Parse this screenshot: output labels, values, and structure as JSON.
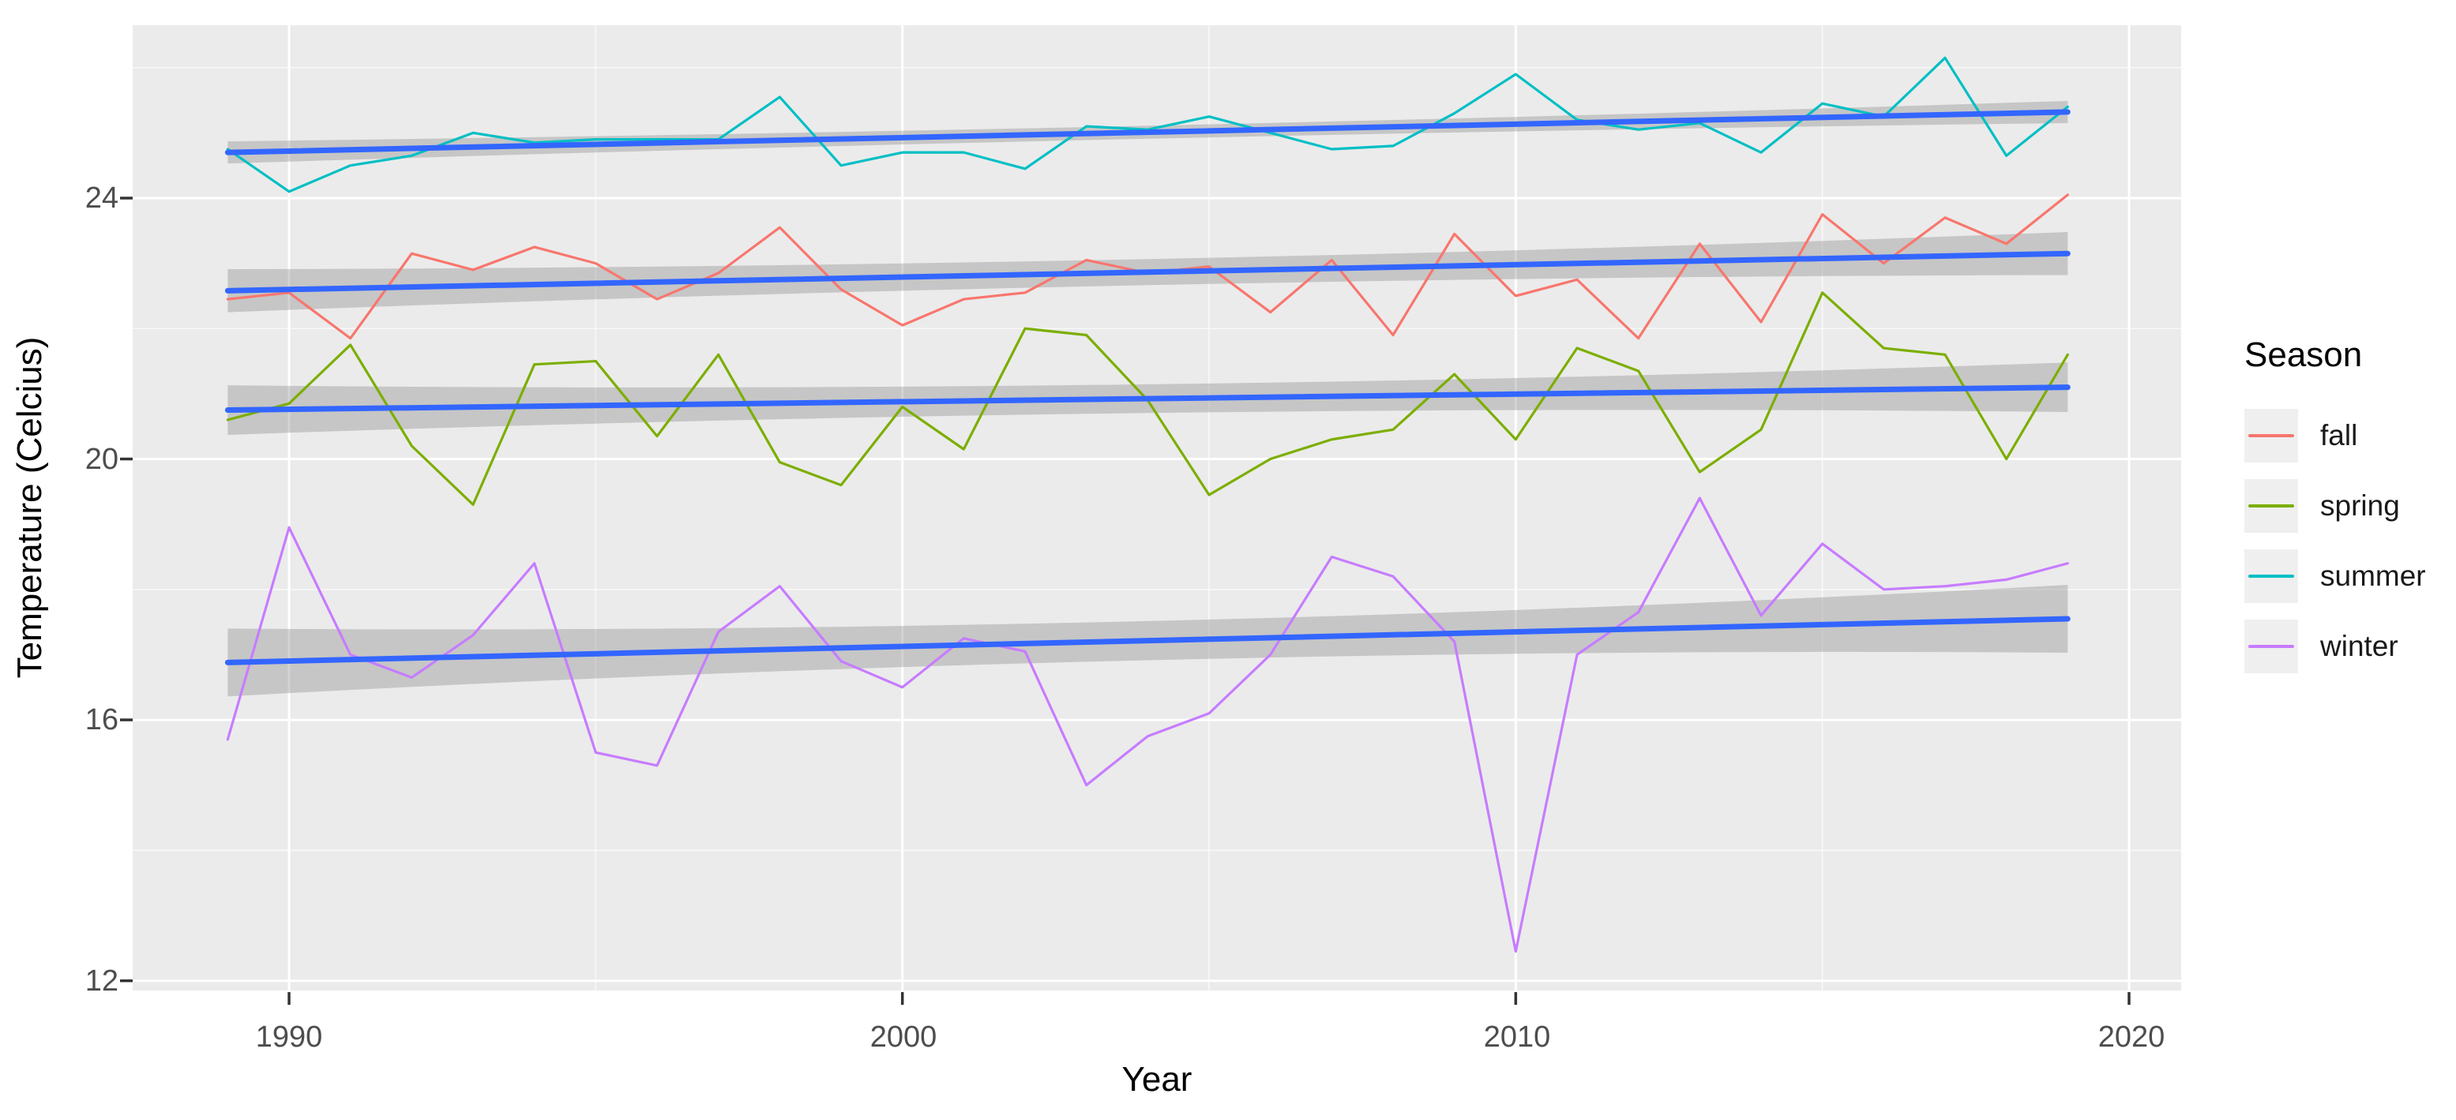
{
  "chart_data": {
    "type": "line",
    "title": "",
    "xlabel": "Year",
    "ylabel": "Temperature (Celcius)",
    "xlim": [
      1987.45,
      2020.85
    ],
    "ylim": [
      11.85,
      26.65
    ],
    "x_ticks": [
      1990,
      2000,
      2010,
      2020
    ],
    "x_minor_ticks": [
      1995,
      2005,
      2015
    ],
    "y_ticks": [
      12,
      16,
      20,
      24
    ],
    "y_minor_ticks": [
      14,
      18,
      22,
      26
    ],
    "grid": "on",
    "legend": {
      "title": "Season",
      "position": "right"
    },
    "x": [
      1989,
      1990,
      1991,
      1992,
      1993,
      1994,
      1995,
      1996,
      1997,
      1998,
      1999,
      2000,
      2001,
      2002,
      2003,
      2004,
      2005,
      2006,
      2007,
      2008,
      2009,
      2010,
      2011,
      2012,
      2013,
      2014,
      2015,
      2016,
      2017,
      2018,
      2019
    ],
    "series": [
      {
        "name": "fall",
        "color": "#F8766D",
        "values": [
          22.45,
          22.55,
          21.85,
          23.15,
          22.9,
          23.25,
          23.0,
          22.45,
          22.85,
          23.55,
          22.6,
          22.05,
          22.45,
          22.55,
          23.05,
          22.85,
          22.95,
          22.25,
          23.05,
          21.9,
          23.45,
          22.5,
          22.75,
          21.85,
          23.3,
          22.1,
          23.75,
          23.0,
          23.7,
          23.3,
          24.05
        ],
        "trend": {
          "start": 22.58,
          "end": 23.15
        },
        "ribbon": {
          "mid": 0.2,
          "end": 0.33
        }
      },
      {
        "name": "spring",
        "color": "#7CAE00",
        "values": [
          20.6,
          20.85,
          21.75,
          20.2,
          19.3,
          21.45,
          21.5,
          20.35,
          21.6,
          19.95,
          19.6,
          20.8,
          20.15,
          22.0,
          21.9,
          20.9,
          19.45,
          20.0,
          20.3,
          20.45,
          21.3,
          20.3,
          21.7,
          21.35,
          19.8,
          20.45,
          22.55,
          21.7,
          21.6,
          20.0,
          21.6
        ],
        "trend": {
          "start": 20.75,
          "end": 21.1
        },
        "ribbon": {
          "mid": 0.22,
          "end": 0.38
        }
      },
      {
        "name": "summer",
        "color": "#00BFC4",
        "values": [
          24.75,
          24.1,
          24.5,
          24.65,
          25.0,
          24.85,
          24.9,
          24.9,
          24.9,
          25.55,
          24.5,
          24.7,
          24.7,
          24.45,
          25.1,
          25.05,
          25.25,
          25.0,
          24.75,
          24.8,
          25.3,
          25.9,
          25.2,
          25.05,
          25.15,
          24.7,
          25.45,
          25.25,
          26.15,
          24.65,
          25.4
        ],
        "trend": {
          "start": 24.7,
          "end": 25.32
        },
        "ribbon": {
          "mid": 0.1,
          "end": 0.17
        }
      },
      {
        "name": "winter",
        "color": "#C77CFF",
        "values": [
          15.7,
          18.95,
          17.0,
          16.65,
          17.3,
          18.4,
          15.5,
          15.3,
          17.35,
          18.05,
          16.9,
          16.5,
          17.25,
          17.05,
          15.0,
          15.75,
          16.1,
          17.0,
          18.5,
          18.2,
          17.2,
          12.45,
          17.0,
          17.65,
          19.4,
          17.6,
          18.7,
          18.0,
          18.05,
          18.15,
          18.4
        ],
        "trend": {
          "start": 16.88,
          "end": 17.55
        },
        "ribbon": {
          "mid": 0.3,
          "end": 0.52
        }
      }
    ],
    "smoother": {
      "color": "#3366FF",
      "ribbon_color": "rgba(130,130,130,0.35)"
    },
    "colors": {
      "panel_bg": "#EBEBEB",
      "grid": "#FFFFFF",
      "tick_mark": "#333333",
      "tick_label": "#4d4d4d",
      "axis_title": "#000000"
    }
  }
}
